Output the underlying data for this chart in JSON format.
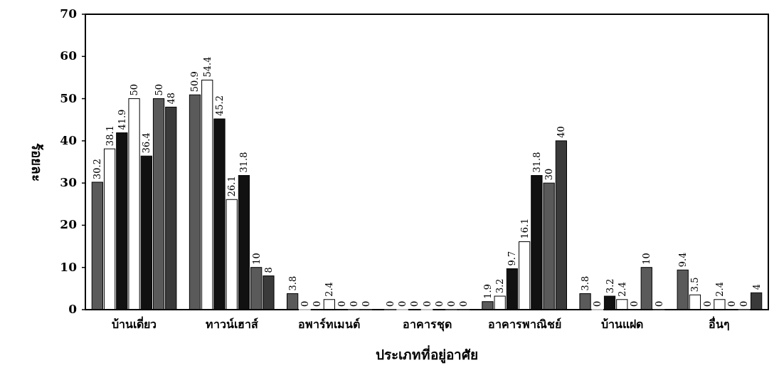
{
  "chart_data": {
    "type": "bar",
    "xlabel": "ประเภทที่อยู่อาศัย",
    "ylabel": "ร้อยละ",
    "categories": [
      "บ้านเดี่ยว",
      "ทาวน์เฮาส์",
      "อพาร์ทเมนต์",
      "อาคารชุด",
      "อาคารพาณิชย์",
      "บ้านแฝด",
      "อื่นๆ"
    ],
    "series": [
      {
        "color": "#5a5a5a",
        "values": [
          30.2,
          50.9,
          3.8,
          0,
          1.9,
          3.8,
          9.4
        ]
      },
      {
        "color": "#ffffff",
        "values": [
          38.1,
          54.4,
          0,
          0,
          3.2,
          0,
          3.5
        ]
      },
      {
        "color": "#111111",
        "values": [
          41.9,
          45.2,
          0,
          0,
          9.7,
          3.2,
          0
        ]
      },
      {
        "color": "#ffffff",
        "values": [
          50,
          26.1,
          2.4,
          0,
          16.1,
          2.4,
          2.4
        ]
      },
      {
        "color": "#111111",
        "values": [
          36.4,
          31.8,
          0,
          0,
          31.8,
          0,
          0
        ]
      },
      {
        "color": "#5a5a5a",
        "values": [
          50,
          10,
          0,
          0,
          30,
          10,
          0
        ]
      },
      {
        "color": "#3a3a3a",
        "values": [
          48,
          8,
          0,
          0,
          40,
          0,
          4
        ]
      }
    ],
    "ylim": [
      0,
      70
    ],
    "yticks": [
      0,
      10,
      20,
      30,
      40,
      50,
      60,
      70
    ],
    "data_labels": true
  }
}
